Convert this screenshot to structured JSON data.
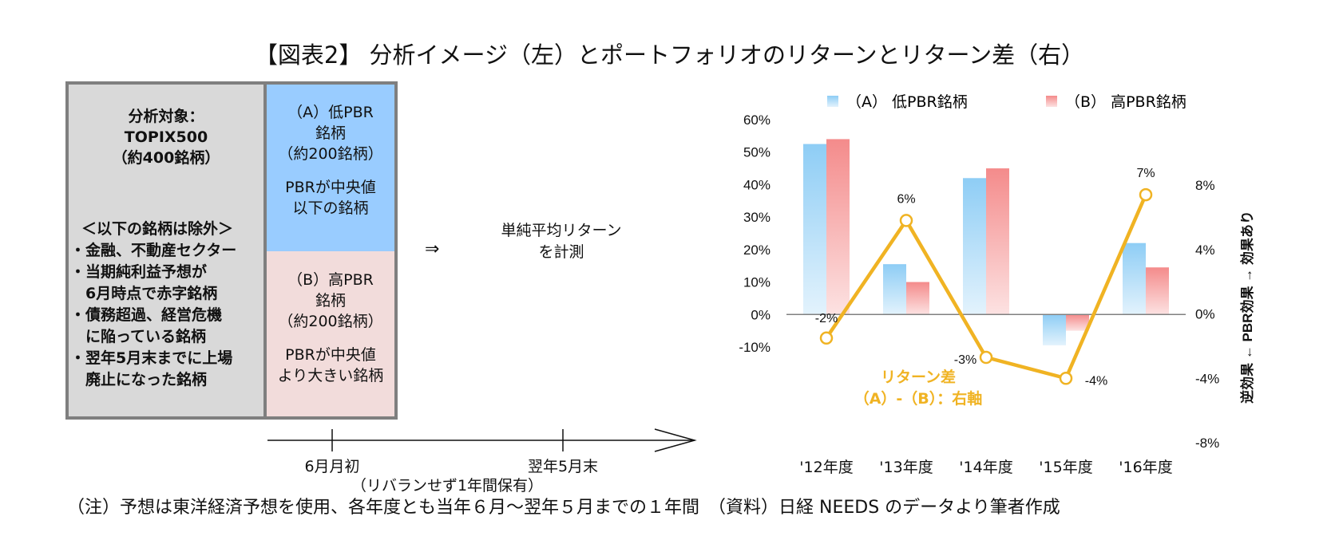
{
  "title": "【図表2】 分析イメージ（左）とポートフォリオのリターンとリターン差（右）",
  "diagram": {
    "target": [
      "分析対象：",
      "TOPIX500",
      "（約400銘柄）"
    ],
    "exclusions_heading": "＜以下の銘柄は除外＞",
    "exclusions": [
      "・金融、不動産セクター",
      "・当期純利益予想が",
      "　6月時点で赤字銘柄",
      "・債務超過、経営危機",
      "　に陥っている銘柄",
      "・翌年5月末までに上場",
      "　廃止になった銘柄"
    ],
    "group_a": {
      "lines": [
        "（A）低PBR",
        "銘柄",
        "（約200銘柄）"
      ],
      "desc": [
        "PBRが中央値",
        "以下の銘柄"
      ],
      "color": "#99ccff"
    },
    "group_b": {
      "lines": [
        "（B）高PBR",
        "銘柄",
        "（約200銘柄）"
      ],
      "desc": [
        "PBRが中央値",
        "より大きい銘柄"
      ],
      "color": "#f2dcdb"
    },
    "arrow": "⇒",
    "measure": [
      "単純平均リターン",
      "を計測"
    ],
    "timeline": {
      "start": "6月月初",
      "end": "翌年5月末",
      "note": "（リバランせず1年間保有）"
    }
  },
  "footnote": "（注）予想は東洋経済予想を使用、各年度とも当年６月～翌年５月までの１年間　（資料）日経 NEEDS のデータより筆者作成",
  "chart_data": {
    "type": "bar",
    "categories": [
      "'12年度",
      "'13年度",
      "'14年度",
      "'15年度",
      "'16年度"
    ],
    "series": [
      {
        "name": "（A） 低PBR銘柄",
        "values": [
          52.5,
          15.5,
          42,
          -9.5,
          22
        ],
        "color": "#8ecdf5"
      },
      {
        "name": "（B） 高PBR銘柄",
        "values": [
          54,
          10,
          45,
          -5,
          14.5
        ],
        "color": "#f48b8b"
      }
    ],
    "line": {
      "name_lines": [
        "リターン差",
        "（A）-（B）：右軸"
      ],
      "values": [
        -1.5,
        5.8,
        -2.7,
        -4.0,
        7.4
      ],
      "labels": [
        "-2%",
        "6%",
        "-3%",
        "-4%",
        "7%"
      ],
      "color": "#f0b323"
    },
    "y_left": {
      "min": -10,
      "max": 60,
      "ticks": [
        "60%",
        "50%",
        "40%",
        "30%",
        "20%",
        "10%",
        "0%",
        "-10%"
      ]
    },
    "y_right": {
      "min": -8,
      "max": 8,
      "ticks": [
        "8%",
        "4%",
        "0%",
        "-4%",
        "-8%"
      ],
      "label": "逆効果 ← PBR効果 → 効果あり"
    }
  }
}
